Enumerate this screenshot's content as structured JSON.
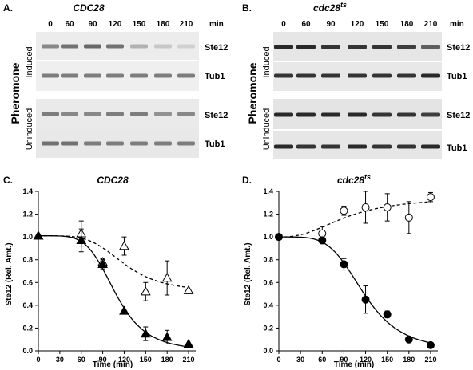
{
  "blot_panels": [
    {
      "letter": "A.",
      "title": "CDC28",
      "title_sup": "",
      "time_labels": [
        "0",
        "60",
        "90",
        "120",
        "150",
        "180",
        "210"
      ],
      "time_unit": "min",
      "group_label": "Pheromone",
      "rows": [
        {
          "label": "Ste12",
          "condition": "Induced",
          "band_intensity": [
            0.45,
            0.55,
            0.6,
            0.55,
            0.25,
            0.15,
            0.1
          ]
        },
        {
          "label": "Tub1",
          "condition": "Induced",
          "band_intensity": [
            0.5,
            0.5,
            0.5,
            0.5,
            0.5,
            0.5,
            0.5
          ]
        },
        {
          "label": "Ste12",
          "condition": "Uninduced",
          "band_intensity": [
            0.5,
            0.45,
            0.45,
            0.5,
            0.5,
            0.4,
            0.45
          ]
        },
        {
          "label": "Tub1",
          "condition": "Uninduced",
          "band_intensity": [
            0.55,
            0.55,
            0.5,
            0.5,
            0.5,
            0.5,
            0.5
          ]
        }
      ],
      "conditions": [
        "Induced",
        "Uninduced"
      ]
    },
    {
      "letter": "B.",
      "title": "cdc28",
      "title_sup": "ts",
      "time_labels": [
        "0",
        "60",
        "90",
        "120",
        "150",
        "180",
        "210"
      ],
      "time_unit": "min",
      "group_label": "Pheromone",
      "rows": [
        {
          "label": "Ste12",
          "condition": "Induced",
          "band_intensity": [
            0.9,
            0.9,
            0.85,
            0.85,
            0.85,
            0.8,
            0.65
          ]
        },
        {
          "label": "Tub1",
          "condition": "Induced",
          "band_intensity": [
            0.85,
            0.85,
            0.85,
            0.85,
            0.85,
            0.85,
            0.9
          ]
        },
        {
          "label": "Ste12",
          "condition": "Uninduced",
          "band_intensity": [
            0.9,
            0.9,
            0.9,
            0.9,
            0.85,
            0.85,
            0.8
          ]
        },
        {
          "label": "Tub1",
          "condition": "Uninduced",
          "band_intensity": [
            0.9,
            0.85,
            0.85,
            0.9,
            0.85,
            0.85,
            0.9
          ]
        }
      ],
      "conditions": [
        "Induced",
        "Uninduced"
      ]
    }
  ],
  "chart_data": [
    {
      "type": "scatter",
      "letter": "C.",
      "title": "CDC28",
      "title_sup": "",
      "xlabel": "Time (min)",
      "ylabel": "Ste12 (Rel. Amt.)",
      "xlim": [
        0,
        220
      ],
      "ylim": [
        0,
        1.4
      ],
      "xticks": [
        0,
        30,
        60,
        90,
        120,
        150,
        180,
        210
      ],
      "yticks": [
        0,
        0.2,
        0.4,
        0.6,
        0.8,
        1.0,
        1.2,
        1.4
      ],
      "grid": false,
      "series": [
        {
          "marker": "triangle-open",
          "line": "dashed",
          "x": [
            0,
            60,
            90,
            120,
            150,
            180,
            210
          ],
          "y": [
            1.01,
            1.03,
            0.78,
            0.92,
            0.52,
            0.64,
            0.53
          ],
          "err": [
            0,
            0.11,
            0.03,
            0.08,
            0.08,
            0.15,
            0
          ]
        },
        {
          "marker": "triangle-filled",
          "line": "solid",
          "x": [
            0,
            60,
            90,
            120,
            150,
            180,
            210
          ],
          "y": [
            1.01,
            0.97,
            0.76,
            0.35,
            0.15,
            0.12,
            0.06
          ],
          "err": [
            0,
            0.1,
            0.04,
            0,
            0.06,
            0.06,
            0
          ]
        }
      ]
    },
    {
      "type": "scatter",
      "letter": "D.",
      "title": "cdc28",
      "title_sup": "ts",
      "xlabel": "Time (min)",
      "ylabel": "Ste12 (Rel. Amt.)",
      "xlim": [
        0,
        220
      ],
      "ylim": [
        0,
        1.4
      ],
      "xticks": [
        0,
        30,
        60,
        90,
        120,
        150,
        180,
        210
      ],
      "yticks": [
        0,
        0.2,
        0.4,
        0.6,
        0.8,
        1.0,
        1.2,
        1.4
      ],
      "grid": false,
      "series": [
        {
          "marker": "circle-open",
          "line": "dashed",
          "x": [
            0,
            60,
            90,
            120,
            150,
            180,
            210
          ],
          "y": [
            1.0,
            1.03,
            1.23,
            1.26,
            1.26,
            1.17,
            1.35
          ],
          "err": [
            0,
            0.06,
            0.04,
            0.14,
            0.12,
            0.14,
            0.04
          ]
        },
        {
          "marker": "circle-filled",
          "line": "solid",
          "x": [
            0,
            60,
            90,
            120,
            150,
            180,
            210
          ],
          "y": [
            1.0,
            0.97,
            0.76,
            0.45,
            0.32,
            0.1,
            0.05
          ],
          "err": [
            0,
            0.03,
            0.05,
            0.12,
            0.03,
            0,
            0
          ]
        }
      ]
    }
  ]
}
